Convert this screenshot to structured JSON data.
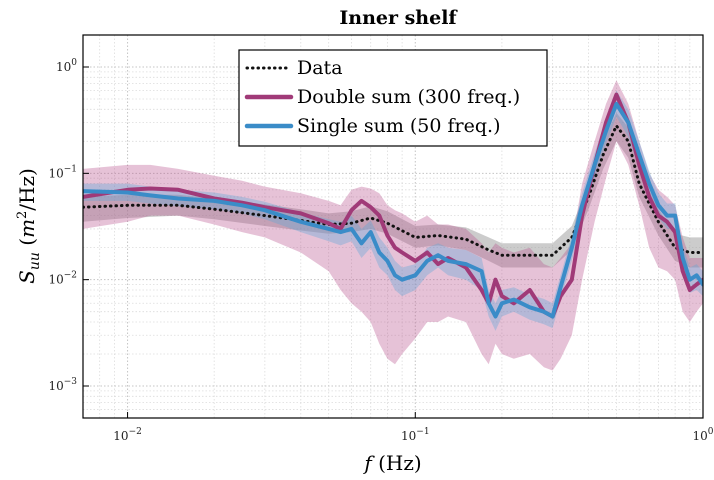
{
  "chart_data": {
    "type": "line",
    "title": "Inner shelf",
    "xlabel": "f (Hz)",
    "ylabel": "S_uu (m²/Hz)",
    "xscale": "log",
    "yscale": "log",
    "xlim": [
      0.007,
      1.0
    ],
    "ylim": [
      0.0005,
      2.0
    ],
    "grid": true,
    "legend_position": "top-center",
    "x_ticks": [
      {
        "value": 0.01,
        "base": "10",
        "exp": "−2"
      },
      {
        "value": 0.1,
        "base": "10",
        "exp": "−1"
      },
      {
        "value": 1,
        "base": "10",
        "exp": "0"
      }
    ],
    "y_ticks": [
      {
        "value": 0.001,
        "base": "10",
        "exp": "−3"
      },
      {
        "value": 0.01,
        "base": "10",
        "exp": "−2"
      },
      {
        "value": 0.1,
        "base": "10",
        "exp": "−1"
      },
      {
        "value": 1,
        "base": "10",
        "exp": "0"
      }
    ],
    "series": [
      {
        "name": "Data",
        "color": "#111111",
        "style": "dotted",
        "x": [
          0.007,
          0.01,
          0.015,
          0.02,
          0.03,
          0.04,
          0.05,
          0.06,
          0.07,
          0.08,
          0.1,
          0.12,
          0.15,
          0.18,
          0.2,
          0.25,
          0.3,
          0.35,
          0.4,
          0.45,
          0.5,
          0.55,
          0.6,
          0.7,
          0.8,
          0.9,
          1.0
        ],
        "y": [
          0.048,
          0.05,
          0.05,
          0.046,
          0.04,
          0.036,
          0.033,
          0.034,
          0.038,
          0.034,
          0.025,
          0.026,
          0.024,
          0.019,
          0.017,
          0.017,
          0.017,
          0.025,
          0.06,
          0.15,
          0.28,
          0.2,
          0.08,
          0.035,
          0.02,
          0.018,
          0.018
        ],
        "band_low": [
          0.035,
          0.038,
          0.04,
          0.037,
          0.032,
          0.029,
          0.027,
          0.028,
          0.03,
          0.027,
          0.02,
          0.021,
          0.019,
          0.015,
          0.013,
          0.013,
          0.013,
          0.019,
          0.046,
          0.11,
          0.2,
          0.14,
          0.06,
          0.026,
          0.015,
          0.013,
          0.013
        ],
        "band_high": [
          0.06,
          0.063,
          0.063,
          0.058,
          0.051,
          0.046,
          0.042,
          0.044,
          0.049,
          0.044,
          0.032,
          0.033,
          0.031,
          0.025,
          0.022,
          0.022,
          0.022,
          0.032,
          0.078,
          0.2,
          0.37,
          0.27,
          0.11,
          0.046,
          0.027,
          0.025,
          0.025
        ]
      },
      {
        "name": "Double sum (300 freq.)",
        "color": "#a03a78",
        "style": "solid",
        "x": [
          0.007,
          0.01,
          0.012,
          0.015,
          0.02,
          0.025,
          0.03,
          0.04,
          0.05,
          0.055,
          0.06,
          0.065,
          0.07,
          0.075,
          0.08,
          0.085,
          0.09,
          0.1,
          0.11,
          0.12,
          0.13,
          0.15,
          0.17,
          0.18,
          0.19,
          0.2,
          0.22,
          0.25,
          0.28,
          0.3,
          0.32,
          0.35,
          0.38,
          0.42,
          0.46,
          0.5,
          0.55,
          0.6,
          0.65,
          0.7,
          0.75,
          0.8,
          0.85,
          0.9,
          0.95,
          1.0
        ],
        "y": [
          0.06,
          0.07,
          0.072,
          0.07,
          0.058,
          0.053,
          0.048,
          0.042,
          0.034,
          0.03,
          0.045,
          0.055,
          0.048,
          0.04,
          0.026,
          0.02,
          0.018,
          0.015,
          0.018,
          0.014,
          0.016,
          0.013,
          0.008,
          0.006,
          0.01,
          0.007,
          0.006,
          0.008,
          0.005,
          0.0045,
          0.007,
          0.01,
          0.04,
          0.12,
          0.3,
          0.55,
          0.3,
          0.12,
          0.06,
          0.04,
          0.035,
          0.028,
          0.012,
          0.008,
          0.009,
          0.01
        ],
        "band_low": [
          0.03,
          0.035,
          0.04,
          0.04,
          0.033,
          0.028,
          0.025,
          0.018,
          0.012,
          0.008,
          0.006,
          0.005,
          0.004,
          0.0025,
          0.0018,
          0.0016,
          0.002,
          0.0028,
          0.004,
          0.004,
          0.0045,
          0.004,
          0.002,
          0.0016,
          0.0025,
          0.002,
          0.0018,
          0.002,
          0.0015,
          0.0014,
          0.0018,
          0.003,
          0.01,
          0.035,
          0.09,
          0.2,
          0.12,
          0.05,
          0.02,
          0.013,
          0.012,
          0.01,
          0.005,
          0.004,
          0.005,
          0.006
        ],
        "band_high": [
          0.11,
          0.12,
          0.12,
          0.11,
          0.095,
          0.085,
          0.075,
          0.065,
          0.055,
          0.05,
          0.07,
          0.075,
          0.072,
          0.065,
          0.05,
          0.045,
          0.042,
          0.035,
          0.04,
          0.033,
          0.033,
          0.03,
          0.022,
          0.018,
          0.022,
          0.02,
          0.018,
          0.02,
          0.014,
          0.013,
          0.016,
          0.022,
          0.08,
          0.2,
          0.45,
          0.75,
          0.45,
          0.2,
          0.1,
          0.07,
          0.06,
          0.05,
          0.025,
          0.016,
          0.016,
          0.016
        ]
      },
      {
        "name": "Single sum (50 freq.)",
        "color": "#3a8cc8",
        "style": "solid",
        "x": [
          0.007,
          0.01,
          0.012,
          0.015,
          0.02,
          0.025,
          0.03,
          0.04,
          0.05,
          0.055,
          0.06,
          0.065,
          0.07,
          0.075,
          0.08,
          0.085,
          0.09,
          0.1,
          0.11,
          0.12,
          0.13,
          0.15,
          0.17,
          0.18,
          0.19,
          0.2,
          0.22,
          0.25,
          0.28,
          0.3,
          0.32,
          0.35,
          0.38,
          0.42,
          0.46,
          0.5,
          0.55,
          0.6,
          0.65,
          0.7,
          0.75,
          0.8,
          0.85,
          0.9,
          0.95,
          1.0
        ],
        "y": [
          0.068,
          0.066,
          0.062,
          0.058,
          0.055,
          0.05,
          0.045,
          0.035,
          0.03,
          0.028,
          0.03,
          0.022,
          0.028,
          0.018,
          0.015,
          0.011,
          0.01,
          0.011,
          0.015,
          0.017,
          0.015,
          0.014,
          0.012,
          0.006,
          0.0045,
          0.006,
          0.0065,
          0.0055,
          0.005,
          0.0045,
          0.0085,
          0.02,
          0.05,
          0.12,
          0.25,
          0.45,
          0.3,
          0.15,
          0.08,
          0.05,
          0.04,
          0.04,
          0.016,
          0.01,
          0.011,
          0.009
        ],
        "band_low": [
          0.055,
          0.055,
          0.052,
          0.049,
          0.046,
          0.042,
          0.037,
          0.028,
          0.023,
          0.021,
          0.023,
          0.016,
          0.02,
          0.013,
          0.011,
          0.008,
          0.007,
          0.008,
          0.011,
          0.013,
          0.011,
          0.01,
          0.008,
          0.0045,
          0.0033,
          0.0045,
          0.005,
          0.0042,
          0.0038,
          0.0035,
          0.0065,
          0.015,
          0.038,
          0.09,
          0.19,
          0.34,
          0.22,
          0.11,
          0.06,
          0.038,
          0.03,
          0.03,
          0.012,
          0.0075,
          0.008,
          0.007
        ],
        "band_high": [
          0.08,
          0.08,
          0.075,
          0.07,
          0.066,
          0.06,
          0.054,
          0.043,
          0.037,
          0.035,
          0.04,
          0.03,
          0.036,
          0.025,
          0.02,
          0.015,
          0.013,
          0.014,
          0.02,
          0.022,
          0.02,
          0.019,
          0.016,
          0.008,
          0.006,
          0.008,
          0.0085,
          0.0072,
          0.0066,
          0.006,
          0.011,
          0.026,
          0.065,
          0.155,
          0.33,
          0.6,
          0.4,
          0.2,
          0.105,
          0.065,
          0.052,
          0.052,
          0.021,
          0.013,
          0.014,
          0.012
        ]
      }
    ]
  }
}
